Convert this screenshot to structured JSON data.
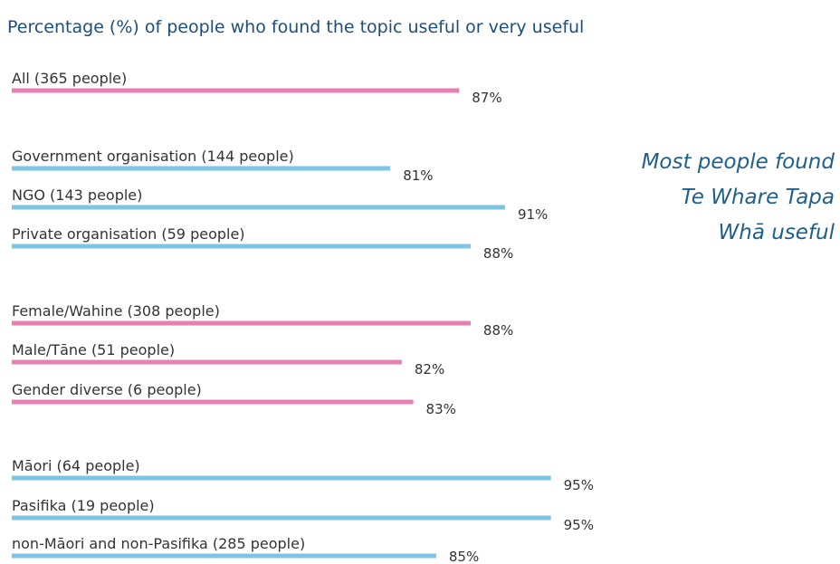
{
  "chart_data": {
    "type": "bar",
    "title": "Percentage (%) of people who found the topic useful or very useful",
    "annotation": [
      "Most people found",
      "Te Whare Tapa",
      "Whā useful"
    ],
    "categories": [
      "All (365 people)",
      "Government organisation (144 people)",
      "NGO (143 people)",
      "Private organisation (59 people)",
      "Female/Wahine (308 people)",
      "Male/Tāne (51 people)",
      "Gender diverse (6 people)",
      "Māori  (64 people)",
      "Pasifika (19 people)",
      "non-Māori and non-Pasifika (285 people)"
    ],
    "values": [
      87,
      81,
      91,
      88,
      88,
      82,
      83,
      95,
      95,
      85
    ],
    "value_labels": [
      "87%",
      "81%",
      "91%",
      "88%",
      "88%",
      "82%",
      "83%",
      "95%",
      "95%",
      "85%"
    ],
    "colors": [
      "#e77fb3",
      "#7ec4e4",
      "#7ec4e4",
      "#7ec4e4",
      "#e77fb3",
      "#e77fb3",
      "#e77fb3",
      "#7ec4e4",
      "#7ec4e4",
      "#7ec4e4"
    ],
    "xlim": [
      48,
      100
    ]
  }
}
